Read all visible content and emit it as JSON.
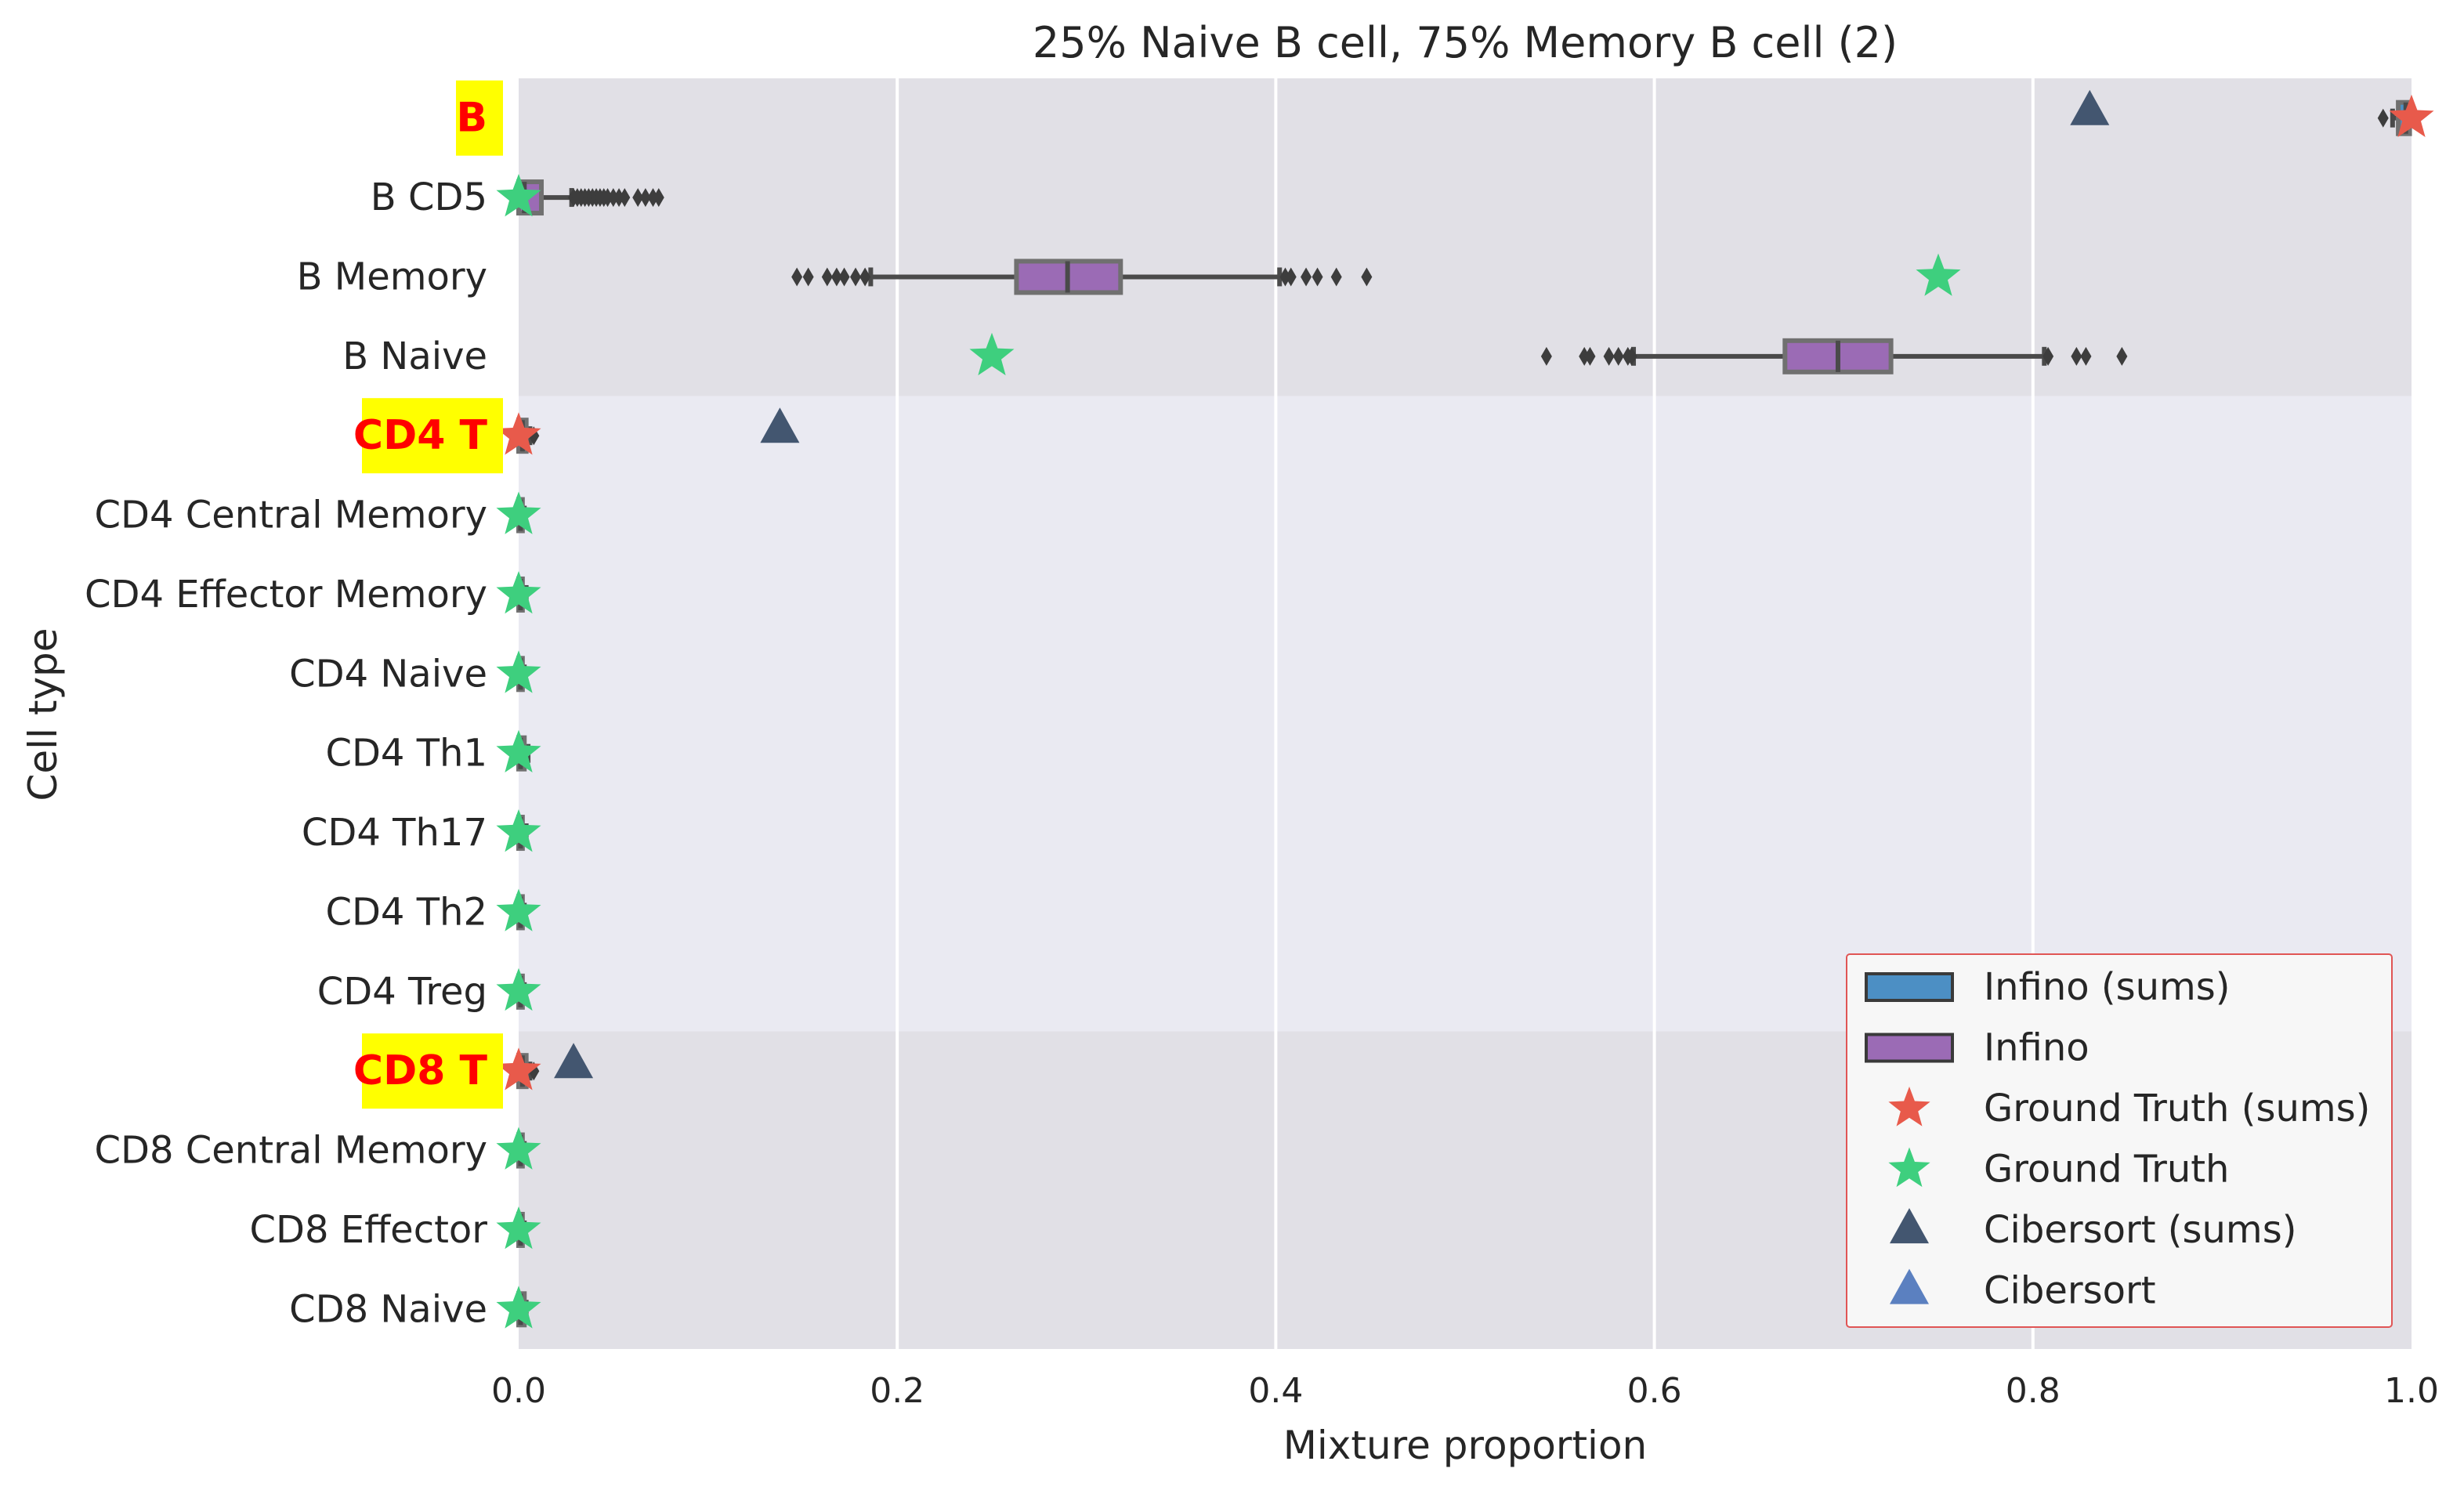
{
  "chart_data": {
    "type": "boxplot",
    "title": "25% Naive B cell, 75% Memory B cell (2)",
    "xlabel": "Mixture proportion",
    "ylabel": "Cell type",
    "xlim": [
      0.0,
      1.0
    ],
    "xticks": [
      0.0,
      0.2,
      0.4,
      0.6,
      0.8,
      1.0
    ],
    "xtick_labels": [
      "0.0",
      "0.2",
      "0.4",
      "0.6",
      "0.8",
      "1.0"
    ],
    "grid": true,
    "legend_position": "lower-right",
    "groups": [
      {
        "label": "B",
        "first": 0,
        "last": 3,
        "shade": "#e1e0e6"
      },
      {
        "label": "CD4 T",
        "first": 4,
        "last": 11,
        "shade": "#eaeaf2"
      },
      {
        "label": "CD8 T",
        "first": 12,
        "last": 15,
        "shade": "#e1e0e6"
      }
    ],
    "categories": [
      {
        "label": "B",
        "group_header": true,
        "box": {
          "q1": 0.993,
          "median": 0.997,
          "q3": 0.999,
          "whisker_low": 0.99,
          "whisker_high": 1.0,
          "kind": "sums"
        },
        "outliers": [
          0.985
        ],
        "ground_truth": 1.0,
        "ground_truth_kind": "sums",
        "cibersort": 0.83,
        "cibersort_kind": "sums"
      },
      {
        "label": "B CD5",
        "group_header": false,
        "box": {
          "q1": 0.0,
          "median": 0.003,
          "q3": 0.012,
          "whisker_low": 0.0,
          "whisker_high": 0.028,
          "kind": "individual"
        },
        "outliers": [
          0.029,
          0.031,
          0.033,
          0.035,
          0.037,
          0.039,
          0.041,
          0.043,
          0.045,
          0.047,
          0.05,
          0.053,
          0.056,
          0.063,
          0.067,
          0.071,
          0.074
        ],
        "ground_truth": 0.0,
        "ground_truth_kind": "individual",
        "cibersort": null
      },
      {
        "label": "B Memory",
        "group_header": false,
        "box": {
          "q1": 0.263,
          "median": 0.29,
          "q3": 0.318,
          "whisker_low": 0.186,
          "whisker_high": 0.402,
          "kind": "individual"
        },
        "outliers": [
          0.147,
          0.153,
          0.163,
          0.168,
          0.172,
          0.178,
          0.183,
          0.405,
          0.408,
          0.416,
          0.422,
          0.432,
          0.448
        ],
        "ground_truth": 0.75,
        "ground_truth_kind": "individual",
        "cibersort": null
      },
      {
        "label": "B Naive",
        "group_header": false,
        "box": {
          "q1": 0.669,
          "median": 0.697,
          "q3": 0.725,
          "whisker_low": 0.589,
          "whisker_high": 0.806,
          "kind": "individual"
        },
        "outliers": [
          0.543,
          0.563,
          0.566,
          0.576,
          0.581,
          0.586,
          0.588,
          0.808,
          0.823,
          0.828,
          0.847
        ],
        "ground_truth": 0.25,
        "ground_truth_kind": "individual",
        "cibersort": null
      },
      {
        "label": "CD4 T",
        "group_header": true,
        "box": {
          "q1": 0.0,
          "median": 0.002,
          "q3": 0.004,
          "whisker_low": 0.0,
          "whisker_high": 0.006,
          "kind": "sums"
        },
        "outliers": [
          0.008
        ],
        "ground_truth": 0.0,
        "ground_truth_kind": "sums",
        "cibersort": 0.138,
        "cibersort_kind": "sums"
      },
      {
        "label": "CD4 Central Memory",
        "group_header": false,
        "box": {
          "q1": 0.0,
          "median": 0.001,
          "q3": 0.002,
          "whisker_low": 0.0,
          "whisker_high": 0.003,
          "kind": "individual"
        },
        "outliers": [],
        "ground_truth": 0.0,
        "ground_truth_kind": "individual",
        "cibersort": null
      },
      {
        "label": "CD4 Effector Memory",
        "group_header": false,
        "box": {
          "q1": 0.0,
          "median": 0.001,
          "q3": 0.002,
          "whisker_low": 0.0,
          "whisker_high": 0.004,
          "kind": "individual"
        },
        "outliers": [],
        "ground_truth": 0.0,
        "ground_truth_kind": "individual",
        "cibersort": null
      },
      {
        "label": "CD4 Naive",
        "group_header": false,
        "box": {
          "q1": 0.0,
          "median": 0.001,
          "q3": 0.002,
          "whisker_low": 0.0,
          "whisker_high": 0.003,
          "kind": "individual"
        },
        "outliers": [],
        "ground_truth": 0.0,
        "ground_truth_kind": "individual",
        "cibersort": null
      },
      {
        "label": "CD4 Th1",
        "group_header": false,
        "box": {
          "q1": 0.0,
          "median": 0.001,
          "q3": 0.003,
          "whisker_low": 0.0,
          "whisker_high": 0.005,
          "kind": "individual"
        },
        "outliers": [],
        "ground_truth": 0.0,
        "ground_truth_kind": "individual",
        "cibersort": null
      },
      {
        "label": "CD4 Th17",
        "group_header": false,
        "box": {
          "q1": 0.0,
          "median": 0.001,
          "q3": 0.002,
          "whisker_low": 0.0,
          "whisker_high": 0.004,
          "kind": "individual"
        },
        "outliers": [],
        "ground_truth": 0.0,
        "ground_truth_kind": "individual",
        "cibersort": null
      },
      {
        "label": "CD4 Th2",
        "group_header": false,
        "box": {
          "q1": 0.0,
          "median": 0.001,
          "q3": 0.002,
          "whisker_low": 0.0,
          "whisker_high": 0.003,
          "kind": "individual"
        },
        "outliers": [],
        "ground_truth": 0.0,
        "ground_truth_kind": "individual",
        "cibersort": null
      },
      {
        "label": "CD4 Treg",
        "group_header": false,
        "box": {
          "q1": 0.0,
          "median": 0.001,
          "q3": 0.002,
          "whisker_low": 0.0,
          "whisker_high": 0.003,
          "kind": "individual"
        },
        "outliers": [],
        "ground_truth": 0.0,
        "ground_truth_kind": "individual",
        "cibersort": null
      },
      {
        "label": "CD8 T",
        "group_header": true,
        "box": {
          "q1": 0.0,
          "median": 0.002,
          "q3": 0.004,
          "whisker_low": 0.0,
          "whisker_high": 0.006,
          "kind": "sums"
        },
        "outliers": [
          0.008
        ],
        "ground_truth": 0.0,
        "ground_truth_kind": "sums",
        "cibersort": 0.029,
        "cibersort_kind": "sums"
      },
      {
        "label": "CD8 Central Memory",
        "group_header": false,
        "box": {
          "q1": 0.0,
          "median": 0.001,
          "q3": 0.002,
          "whisker_low": 0.0,
          "whisker_high": 0.003,
          "kind": "individual"
        },
        "outliers": [],
        "ground_truth": 0.0,
        "ground_truth_kind": "individual",
        "cibersort": null
      },
      {
        "label": "CD8 Effector",
        "group_header": false,
        "box": {
          "q1": 0.0,
          "median": 0.001,
          "q3": 0.002,
          "whisker_low": 0.0,
          "whisker_high": 0.003,
          "kind": "individual"
        },
        "outliers": [],
        "ground_truth": 0.0,
        "ground_truth_kind": "individual",
        "cibersort": null
      },
      {
        "label": "CD8 Naive",
        "group_header": false,
        "box": {
          "q1": 0.0,
          "median": 0.001,
          "q3": 0.003,
          "whisker_low": 0.0,
          "whisker_high": 0.004,
          "kind": "individual"
        },
        "outliers": [],
        "ground_truth": 0.0,
        "ground_truth_kind": "individual",
        "cibersort": null
      }
    ],
    "legend": [
      {
        "label": "Infino (sums)",
        "marker": "box",
        "color": "#4c8fc4"
      },
      {
        "label": "Infino",
        "marker": "box",
        "color": "#9b6bb5"
      },
      {
        "label": "Ground Truth (sums)",
        "marker": "star",
        "color": "#e85a4b"
      },
      {
        "label": "Ground Truth",
        "marker": "star",
        "color": "#3ecf7e"
      },
      {
        "label": "Cibersort (sums)",
        "marker": "triangle",
        "color": "#435670"
      },
      {
        "label": "Cibersort",
        "marker": "triangle",
        "color": "#5b80c0"
      }
    ],
    "colors": {
      "box_individual": "#9b6bb5",
      "box_sums": "#4c8fc4",
      "box_edge": "#4a4a4a",
      "ground_truth_sums": "#e85a4b",
      "ground_truth": "#3ecf7e",
      "cibersort_sums": "#435670",
      "cibersort": "#5b80c0",
      "group_label_bg": "#ffff00",
      "group_label_text": "#ff0000",
      "legend_border": "#e05555"
    }
  }
}
